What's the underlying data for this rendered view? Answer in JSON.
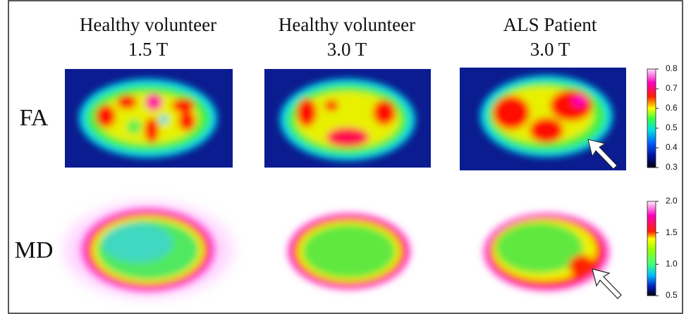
{
  "columns": [
    {
      "title": "Healthy volunteer",
      "field": "1.5 T"
    },
    {
      "title": "Healthy volunteer",
      "field": "3.0 T"
    },
    {
      "title": "ALS Patient",
      "field": "3.0 T"
    }
  ],
  "rows": [
    {
      "label": "FA"
    },
    {
      "label": "MD"
    }
  ],
  "colorbars": [
    {
      "lim": [
        0.3,
        0.8
      ],
      "ticks": [
        0.3,
        0.4,
        0.5,
        0.6,
        0.7,
        0.8
      ]
    },
    {
      "lim": [
        0.5,
        2.0
      ],
      "ticks": [
        0.5,
        {
          "value": 1.0,
          "label": "1.0"
        },
        1.5,
        {
          "value": 2.0,
          "label": "2.0"
        }
      ]
    }
  ]
}
